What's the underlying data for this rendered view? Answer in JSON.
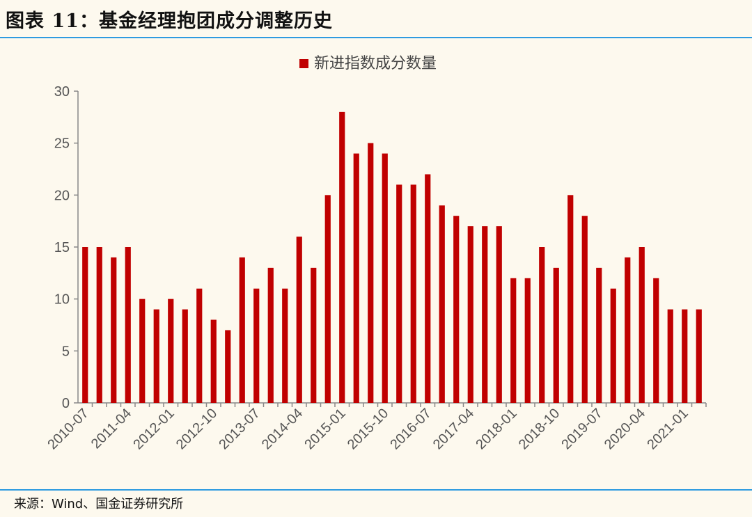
{
  "header": {
    "title": "图表 11：基金经理抱团成分调整历史"
  },
  "footer": {
    "source": "来源：Wind、国金证券研究所"
  },
  "colors": {
    "bar": "#c00000",
    "rule": "#2e9be0",
    "background": "#fdf9ee"
  },
  "chart_data": {
    "type": "bar",
    "title": "",
    "xlabel": "",
    "ylabel": "",
    "ylim": [
      0,
      30
    ],
    "y_ticks": [
      0,
      5,
      10,
      15,
      20,
      25,
      30
    ],
    "grid": false,
    "legend_position": "top-center",
    "categories": [
      "2010-07",
      "2010-10",
      "2011-01",
      "2011-04",
      "2011-07",
      "2011-10",
      "2012-01",
      "2012-04",
      "2012-07",
      "2012-10",
      "2013-01",
      "2013-04",
      "2013-07",
      "2013-10",
      "2014-01",
      "2014-04",
      "2014-07",
      "2014-10",
      "2015-01",
      "2015-04",
      "2015-07",
      "2015-10",
      "2016-01",
      "2016-04",
      "2016-07",
      "2016-10",
      "2017-01",
      "2017-04",
      "2017-07",
      "2017-10",
      "2018-01",
      "2018-04",
      "2018-07",
      "2018-10",
      "2019-01",
      "2019-04",
      "2019-07",
      "2019-10",
      "2020-01",
      "2020-04",
      "2020-07",
      "2020-10",
      "2021-01",
      "2021-04"
    ],
    "x_tick_labels": [
      "2010-07",
      "2011-04",
      "2012-01",
      "2012-10",
      "2013-07",
      "2014-04",
      "2015-01",
      "2015-10",
      "2016-07",
      "2017-04",
      "2018-01",
      "2018-10",
      "2019-07",
      "2020-04",
      "2021-01"
    ],
    "series": [
      {
        "name": "新进指数成分数量",
        "values": [
          15,
          15,
          14,
          15,
          10,
          9,
          10,
          9,
          11,
          8,
          7,
          14,
          11,
          13,
          11,
          16,
          13,
          20,
          28,
          24,
          25,
          24,
          21,
          21,
          22,
          19,
          18,
          17,
          17,
          17,
          12,
          12,
          15,
          13,
          20,
          18,
          13,
          11,
          14,
          15,
          12,
          9,
          9,
          9
        ]
      }
    ]
  }
}
